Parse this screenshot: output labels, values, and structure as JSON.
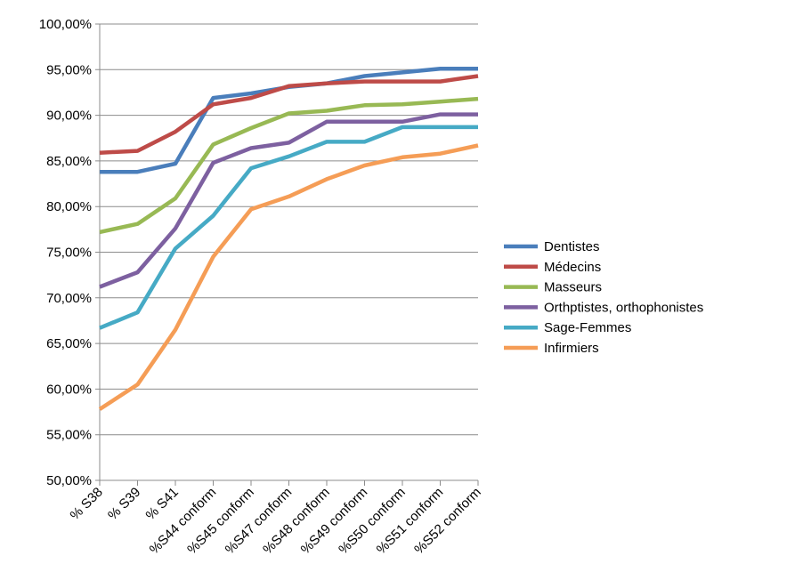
{
  "chart_data": {
    "type": "line",
    "title": "",
    "xlabel": "",
    "ylabel": "",
    "categories": [
      "% S38",
      "% S39",
      "% S41",
      "%S44 conform",
      "%S45 conform",
      "%S47 conform",
      "%S48 conform",
      "%S49 conform",
      "%S50 conform",
      "%S51 conform",
      "%S52 conform"
    ],
    "ylim": [
      0.5,
      1.0
    ],
    "ytick_step": 0.05,
    "ytick_labels": [
      "50,00%",
      "55,00%",
      "60,00%",
      "65,00%",
      "70,00%",
      "75,00%",
      "80,00%",
      "85,00%",
      "90,00%",
      "95,00%",
      "100,00%"
    ],
    "grid": "horizontal",
    "legend_position": "right",
    "series": [
      {
        "name": "Dentistes",
        "color": "#4a7ebb",
        "values": [
          0.838,
          0.838,
          0.847,
          0.919,
          0.924,
          0.931,
          0.935,
          0.943,
          0.947,
          0.951,
          0.951
        ]
      },
      {
        "name": "Médecins",
        "color": "#be4b48",
        "values": [
          0.859,
          0.861,
          0.882,
          0.912,
          0.919,
          0.932,
          0.935,
          0.937,
          0.937,
          0.937,
          0.943
        ]
      },
      {
        "name": "Masseurs",
        "color": "#98b954",
        "values": [
          0.772,
          0.781,
          0.809,
          0.868,
          0.886,
          0.902,
          0.905,
          0.911,
          0.912,
          0.915,
          0.918
        ]
      },
      {
        "name": "Orthptistes, orthophonistes",
        "color": "#7d60a0",
        "values": [
          0.712,
          0.728,
          0.776,
          0.848,
          0.864,
          0.87,
          0.893,
          0.893,
          0.893,
          0.901,
          0.901
        ]
      },
      {
        "name": "Sage-Femmes",
        "color": "#46aac5",
        "values": [
          0.667,
          0.684,
          0.754,
          0.79,
          0.842,
          0.855,
          0.871,
          0.871,
          0.887,
          0.887,
          0.887
        ]
      },
      {
        "name": "Infirmiers",
        "color": "#f59d56",
        "values": [
          0.578,
          0.605,
          0.665,
          0.745,
          0.797,
          0.811,
          0.83,
          0.845,
          0.854,
          0.858,
          0.867
        ]
      }
    ]
  }
}
